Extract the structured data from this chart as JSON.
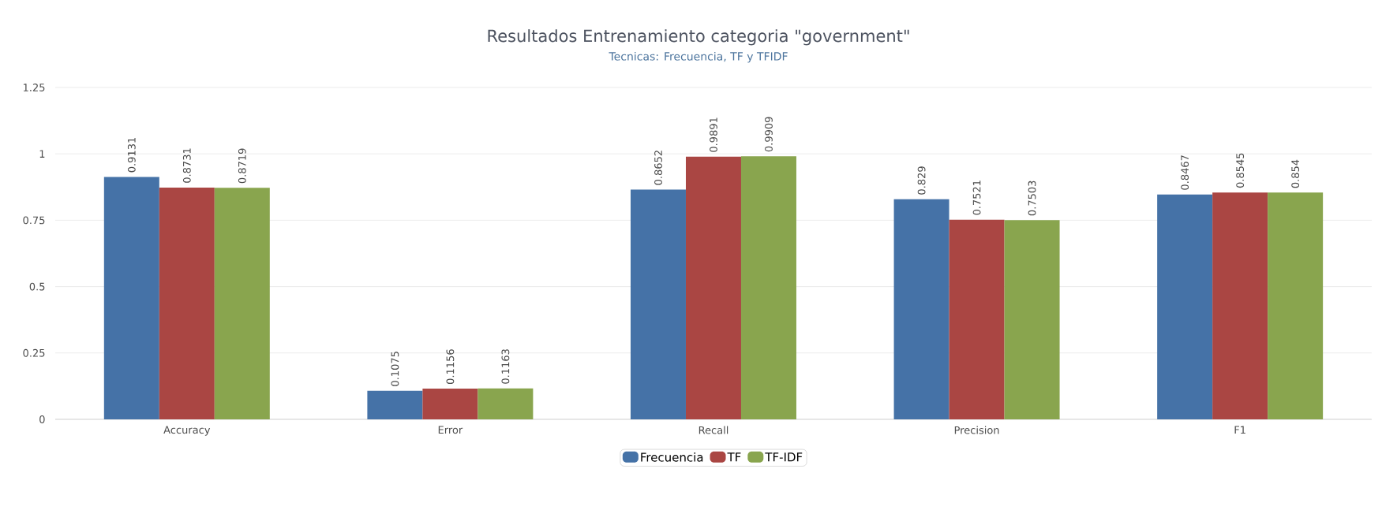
{
  "chart_data": {
    "type": "bar",
    "title": "Resultados Entrenamiento categoria \"government\"",
    "subtitle": "Tecnicas: Frecuencia, TF y TFIDF",
    "categories": [
      "Accuracy",
      "Error",
      "Recall",
      "Precision",
      "F1"
    ],
    "series": [
      {
        "name": "Frecuencia",
        "color": "#4572a7",
        "values": [
          0.9131,
          0.1075,
          0.8652,
          0.829,
          0.8467
        ]
      },
      {
        "name": "TF",
        "color": "#aa4643",
        "values": [
          0.8731,
          0.1156,
          0.9891,
          0.7521,
          0.8545
        ]
      },
      {
        "name": "TF-IDF",
        "color": "#89a54e",
        "values": [
          0.8719,
          0.1163,
          0.9909,
          0.7503,
          0.854
        ]
      }
    ],
    "ylim": [
      0,
      1.25
    ],
    "yticks": [
      0,
      0.25,
      0.5,
      0.75,
      1,
      1.25
    ],
    "grid": "y",
    "legend": "bottom",
    "data_labels": true
  }
}
